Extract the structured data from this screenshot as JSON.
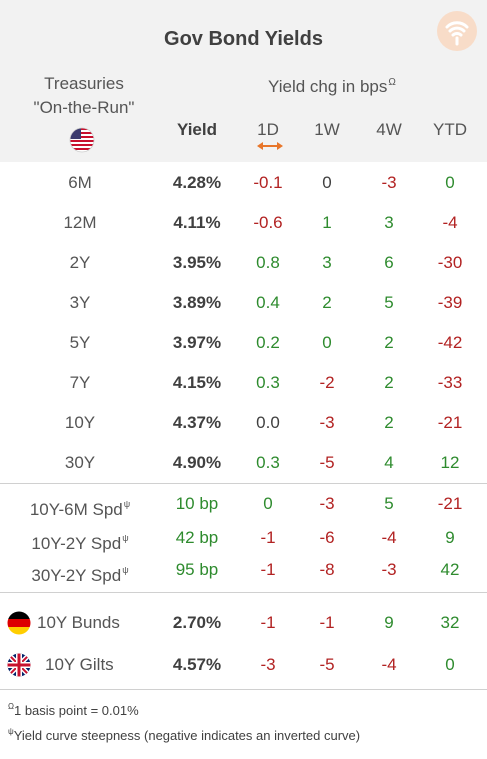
{
  "title": "Gov Bond Yields",
  "header": {
    "treasuries_line1": "Treasuries",
    "treasuries_line2": "\"On-the-Run\"",
    "yield_label": "Yield",
    "chg_label": "Yield chg in bps",
    "chg_sup": "Ω",
    "cols": [
      "1D",
      "1W",
      "4W",
      "YTD"
    ]
  },
  "treasuries": [
    {
      "label": "6M",
      "yield": "4.28%",
      "d1": "-0.1",
      "w1": "0",
      "w4": "-3",
      "ytd": "0"
    },
    {
      "label": "12M",
      "yield": "4.11%",
      "d1": "-0.6",
      "w1": "1",
      "w4": "3",
      "ytd": "-4"
    },
    {
      "label": "2Y",
      "yield": "3.95%",
      "d1": "0.8",
      "w1": "3",
      "w4": "6",
      "ytd": "-30"
    },
    {
      "label": "3Y",
      "yield": "3.89%",
      "d1": "0.4",
      "w1": "2",
      "w4": "5",
      "ytd": "-39"
    },
    {
      "label": "5Y",
      "yield": "3.97%",
      "d1": "0.2",
      "w1": "0",
      "w4": "2",
      "ytd": "-42"
    },
    {
      "label": "7Y",
      "yield": "4.15%",
      "d1": "0.3",
      "w1": "-2",
      "w4": "2",
      "ytd": "-33"
    },
    {
      "label": "10Y",
      "yield": "4.37%",
      "d1": "0.0",
      "w1": "-3",
      "w4": "2",
      "ytd": "-21"
    },
    {
      "label": "30Y",
      "yield": "4.90%",
      "d1": "0.3",
      "w1": "-5",
      "w4": "4",
      "ytd": "12"
    }
  ],
  "spreads": [
    {
      "label": "10Y-6M Spd",
      "sup": "ψ",
      "yield": "10 bp",
      "d1": "0",
      "w1": "-3",
      "w4": "5",
      "ytd": "-21"
    },
    {
      "label": "10Y-2Y Spd",
      "sup": "ψ",
      "yield": "42 bp",
      "d1": "-1",
      "w1": "-6",
      "w4": "-4",
      "ytd": "9"
    },
    {
      "label": "30Y-2Y Spd",
      "sup": "ψ",
      "yield": "95 bp",
      "d1": "-1",
      "w1": "-8",
      "w4": "-3",
      "ytd": "42"
    }
  ],
  "international": [
    {
      "label": "10Y Bunds",
      "flag": "germany-flag",
      "yield": "2.70%",
      "d1": "-1",
      "w1": "-1",
      "w4": "9",
      "ytd": "32"
    },
    {
      "label": "10Y Gilts",
      "flag": "uk-flag",
      "yield": "4.57%",
      "d1": "-3",
      "w1": "-5",
      "w4": "-4",
      "ytd": "0"
    }
  ],
  "footnotes": [
    {
      "sup": "Ω",
      "text": "1 basis point = 0.01%"
    },
    {
      "sup": "ψ",
      "text": "Yield curve steepness (negative indicates an inverted curve)"
    }
  ],
  "colors": {
    "positive": "#2e8b2e",
    "negative": "#b22222",
    "header_bg": "#f2f2f2",
    "accent": "#f0a060"
  }
}
